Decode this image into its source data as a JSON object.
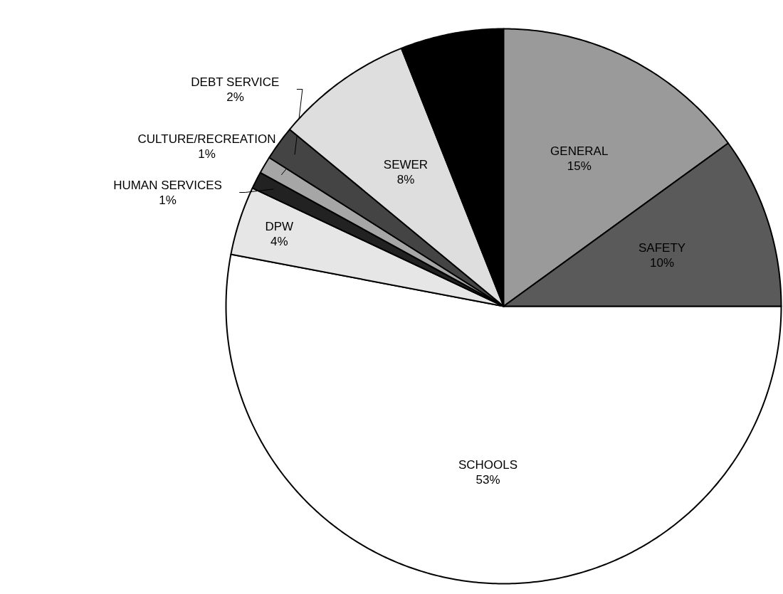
{
  "chart_data": {
    "type": "pie",
    "categories": [
      "SCHOOLS",
      "DPW",
      "HUMAN SERVICES",
      "CULTURE/RECREATION",
      "DEBT SERVICE",
      "SEWER",
      null,
      "GENERAL",
      "SAFETY"
    ],
    "values": [
      53,
      4,
      1,
      1,
      2,
      8,
      6,
      15,
      10
    ],
    "colors": [
      "#ffffff",
      "#e6e6e6",
      "#222222",
      "#a6a6a6",
      "#444444",
      "#dedede",
      "#000000",
      "#9a9a9a",
      "#5a5a5a"
    ],
    "value_labels": [
      "53%",
      "4%",
      "1%",
      "1%",
      "2%",
      "8%",
      null,
      "15%",
      "10%"
    ]
  }
}
